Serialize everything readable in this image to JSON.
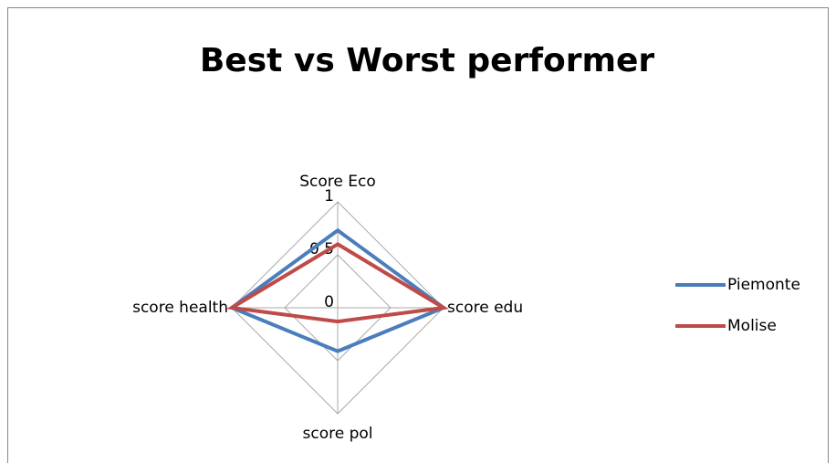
{
  "chart_data": {
    "type": "radar",
    "title": "Best vs Worst performer",
    "categories": [
      "Score Eco",
      "score edu",
      "score pol",
      "score health"
    ],
    "series": [
      {
        "name": "Piemonte",
        "color": "#4a7ebb",
        "values": [
          0.73,
          1,
          0.41,
          1
        ]
      },
      {
        "name": "Molise",
        "color": "#be4b48",
        "values": [
          0.6,
          1,
          0.13,
          1
        ]
      }
    ],
    "rlim": [
      0,
      1
    ],
    "rticks": [
      0,
      0.5,
      1
    ],
    "grid": true,
    "legend": "right"
  }
}
